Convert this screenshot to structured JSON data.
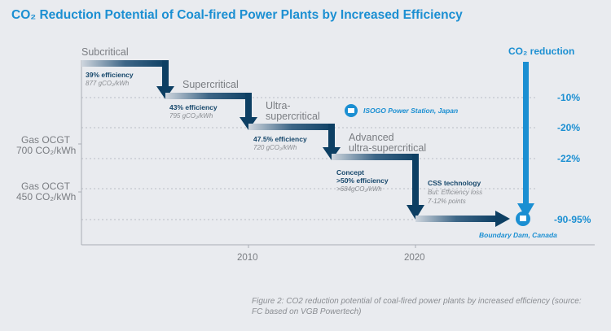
{
  "title": "CO₂ Reduction Potential of Coal-fired Power Plants by Increased Efficiency",
  "colors": {
    "title": "#1b8fd2",
    "steps": "#0d3f63",
    "reduction_arrow": "#1b8fd2",
    "background": "#e9ebef"
  },
  "stages": [
    {
      "name": "Subcritical",
      "efficiency": "39% efficiency",
      "emission": "877 gCO₂/kWh"
    },
    {
      "name": "Supercritical",
      "efficiency": "43% efficiency",
      "emission": "795 gCO₂/kWh"
    },
    {
      "name1": "Ultra-",
      "name2": "supercritical",
      "efficiency": "47.5% efficiency",
      "emission": "720 gCO₂/kWh"
    },
    {
      "name1": "Advanced",
      "name2": "ultra-supercritical",
      "label": "Concept",
      "efficiency": ">50% efficiency",
      "emission": ">684gCO₂/kWh"
    },
    {
      "name": "CSS technology",
      "note1": "But: Efficiency loss",
      "note2": "7-12% points"
    }
  ],
  "reduction": {
    "label": "CO₂ reduction",
    "levels": [
      "-10%",
      "-20%",
      "-22%",
      "-90-95%"
    ]
  },
  "plants": {
    "isogo": "ISOGO Power Station, Japan",
    "boundary": "Boundary Dam, Canada",
    "icon": "factory-icon"
  },
  "gas": [
    {
      "l1": "Gas OCGT",
      "l2": "700 CO₂/kWh"
    },
    {
      "l1": "Gas OCGT",
      "l2": "450 CO₂/kWh"
    }
  ],
  "x_ticks": [
    "2010",
    "2020"
  ],
  "caption": "Figure 2: CO2 reduction potential of coal-fired power plants by increased efficiency (source: FC based on VGB Powertech)"
}
